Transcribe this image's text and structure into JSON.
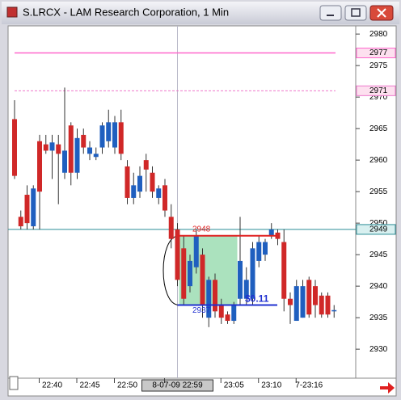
{
  "window": {
    "title": "S.LRCX - LAM Research Corporation, 1 Min"
  },
  "chart_data": {
    "type": "candlestick",
    "categories": [
      null,
      null,
      null,
      null,
      null,
      null,
      "22:40",
      null,
      null,
      null,
      null,
      null,
      "22:45",
      null,
      null,
      null,
      null,
      null,
      "22:50",
      null,
      null,
      null,
      null,
      null,
      null,
      null,
      "8-07-09 22:59",
      null,
      null,
      null,
      null,
      null,
      null,
      null,
      null,
      "23:05",
      null,
      null,
      null,
      null,
      null,
      "23:10",
      null,
      null,
      null,
      null,
      null,
      "7-23:16",
      null,
      null,
      null,
      null
    ],
    "open": [
      2966.5,
      2951,
      2954.5,
      2949.5,
      2963,
      2962.5,
      2961.5,
      2962.5,
      2958,
      2965.5,
      2958,
      2964,
      2961,
      2960.5,
      2962,
      2963,
      2962,
      2966,
      2959,
      2954,
      2955,
      2960,
      2958,
      2954,
      2956,
      2951,
      2949,
      2946,
      2940,
      2943,
      2945,
      2935,
      2941,
      2937,
      2935.5,
      2934.5,
      2938,
      2938,
      2938,
      2944,
      2945,
      2948,
      2948.5,
      2947,
      2938,
      2934.5,
      2935,
      2941,
      2940,
      2938.5,
      2938.5,
      2936
    ],
    "high": [
      2969.5,
      2952,
      2956,
      2956,
      2964,
      2964,
      2964,
      2964,
      2971.5,
      2966,
      2965,
      2965,
      2963,
      2962,
      2966,
      2968,
      2967,
      2968,
      2960,
      2958,
      2959,
      2961,
      2959,
      2956,
      2957,
      2953,
      2950,
      2948,
      2945,
      2949,
      2946,
      2941.5,
      2942,
      2938,
      2936,
      2937.5,
      2951,
      2943,
      2947,
      2948,
      2947.5,
      2950,
      2949,
      2949,
      2939,
      2941,
      2941,
      2941.5,
      2941,
      2939,
      2939,
      2937
    ],
    "low": [
      2957,
      2949,
      2949,
      2949,
      2949,
      2961,
      2957,
      2953,
      2957,
      2956,
      2957,
      2961,
      2960,
      2960,
      2961,
      2962,
      2961,
      2960,
      2953,
      2953,
      2954,
      2955,
      2954,
      2953,
      2951,
      2946,
      2940,
      2937,
      2939,
      2942,
      2935,
      2933.5,
      2935,
      2934,
      2934,
      2934,
      2937,
      2937,
      2937,
      2943,
      2944,
      2947.5,
      2946.5,
      2936,
      2934,
      2934.5,
      2935,
      2935,
      2935,
      2935,
      2935,
      2935
    ],
    "close": [
      2957.5,
      2949.5,
      2950,
      2955.5,
      2955,
      2961.5,
      2962.8,
      2961,
      2961.5,
      2958,
      2963.5,
      2962,
      2962,
      2961,
      2965.5,
      2966,
      2966,
      2961,
      2954,
      2956,
      2957.5,
      2958.5,
      2955,
      2955.5,
      2952,
      2947.5,
      2941,
      2938,
      2944,
      2948,
      2937,
      2941,
      2936,
      2935,
      2934.5,
      2937,
      2944,
      2941,
      2946,
      2947,
      2947,
      2949,
      2947.5,
      2938,
      2937,
      2940,
      2940,
      2935.5,
      2937,
      2935.5,
      2935.5,
      2936.2
    ],
    "up_color": "#1f5fbf",
    "down_color": "#d02828",
    "ylim": [
      2925.4,
      2981.3
    ],
    "yticks": [
      2930,
      2935,
      2940,
      2945,
      2950,
      2955,
      2960,
      2965,
      2970,
      2975,
      2980
    ],
    "grid": false,
    "crosshair_index": 26,
    "hlines": [
      {
        "value": 2977,
        "color": "#ff66cc",
        "style": "solid"
      },
      {
        "value": 2971,
        "color": "#ee77cc",
        "style": "dashed"
      },
      {
        "value": 2949,
        "color": "#2a8c96",
        "style": "solid"
      }
    ],
    "measure": {
      "from": 2948,
      "to": 2937,
      "label": "$0.11"
    }
  }
}
